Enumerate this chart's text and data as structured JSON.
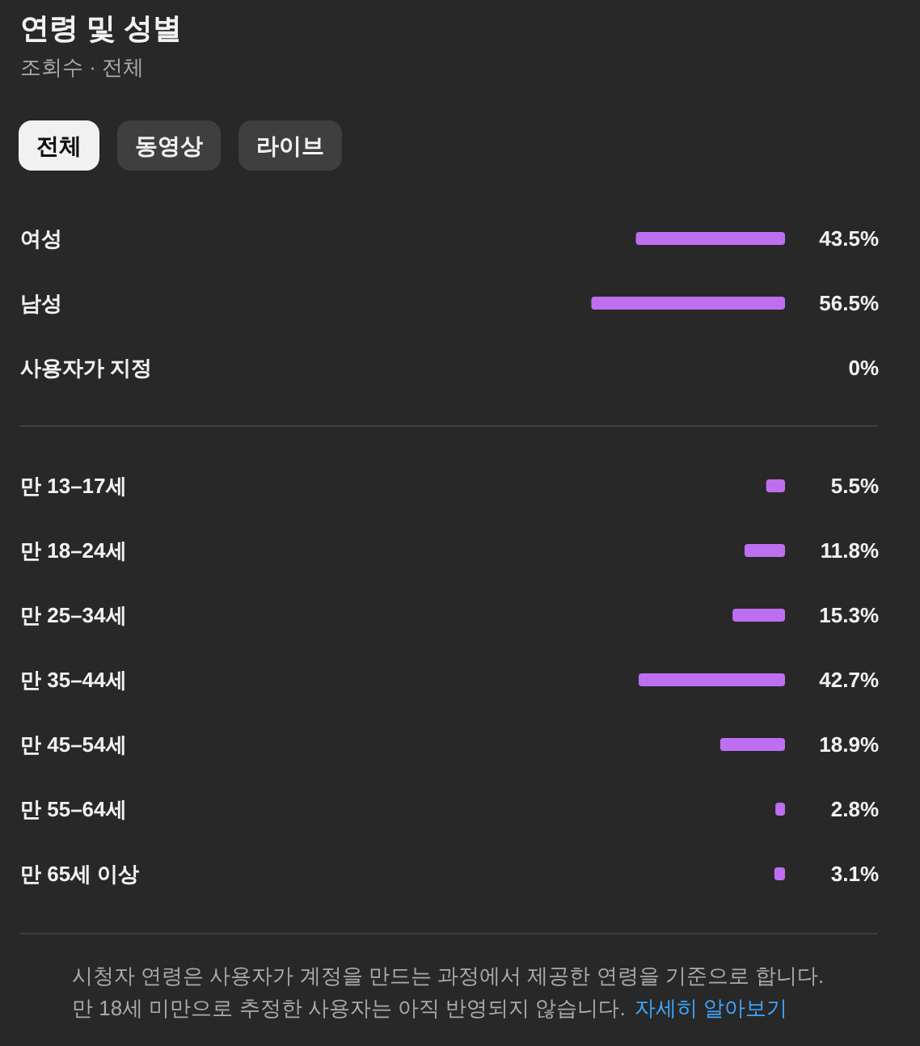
{
  "chart_data": [
    {
      "type": "bar",
      "orientation": "horizontal",
      "title": "연령 및 성별",
      "subtitle": "조회수 · 전체",
      "annotations": [
        "전체",
        "동영상",
        "라이브"
      ],
      "categories": [
        "여성",
        "남성",
        "사용자가 지정"
      ],
      "values": [
        43.5,
        56.5,
        0
      ],
      "value_labels": [
        "43.5%",
        "56.5%",
        "0%"
      ],
      "color": "#bd6ff0"
    },
    {
      "type": "bar",
      "orientation": "horizontal",
      "categories": [
        "만 13–17세",
        "만 18–24세",
        "만 25–34세",
        "만 35–44세",
        "만 45–54세",
        "만 55–64세",
        "만 65세 이상"
      ],
      "values": [
        5.5,
        11.8,
        15.3,
        42.7,
        18.9,
        2.8,
        3.1
      ],
      "value_labels": [
        "5.5%",
        "11.8%",
        "15.3%",
        "42.7%",
        "18.9%",
        "2.8%",
        "3.1%"
      ],
      "color": "#bd6ff0",
      "annotations": [
        "시청자 연령은 사용자가 계정을 만드는 과정에서 제공한 연령을 기준으로 합니다.",
        "만 18세 미만으로 추정한 사용자는 아직 반영되지 않습니다.",
        "자세히 알아보기"
      ]
    }
  ]
}
